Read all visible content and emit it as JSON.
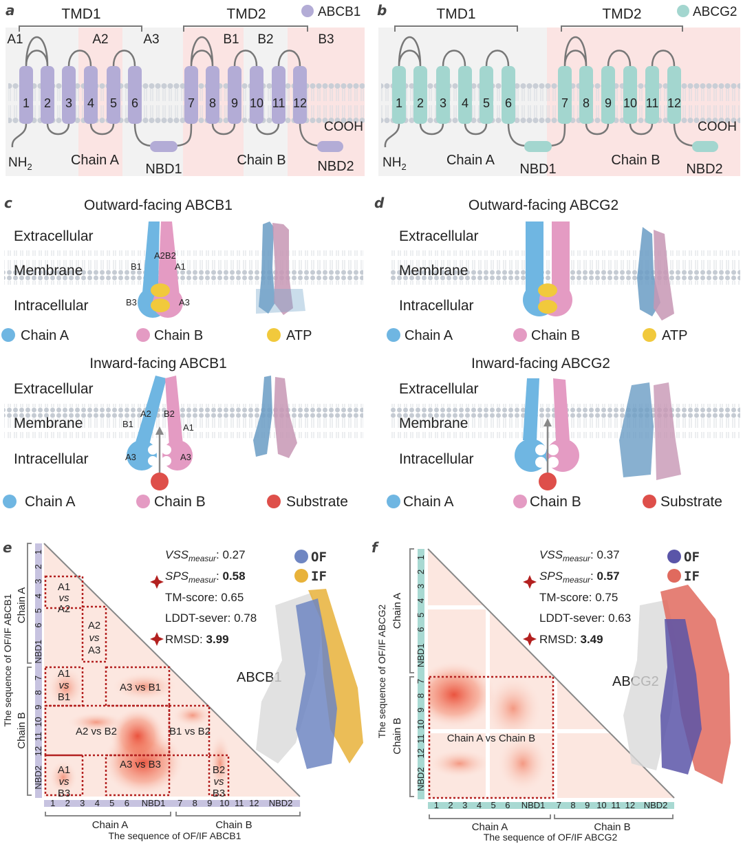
{
  "panels": {
    "a": {
      "letter": "a",
      "protein": "ABCB1",
      "legend_color": "#b3acd6",
      "tmd1": "TMD1",
      "tmd2": "TMD2",
      "region_labels": [
        "A1",
        "A2",
        "A3",
        "B1",
        "B2",
        "B3"
      ],
      "helices": [
        "1",
        "2",
        "3",
        "4",
        "5",
        "6",
        "7",
        "8",
        "9",
        "10",
        "11",
        "12"
      ],
      "nh2": "NH",
      "nh2_sub": "2",
      "cooh": "COOH",
      "chain_a": "Chain A",
      "chain_b": "Chain B",
      "nbd1": "NBD1",
      "nbd2": "NBD2"
    },
    "b": {
      "letter": "b",
      "protein": "ABCG2",
      "legend_color": "#a3d6cf",
      "tmd1": "TMD1",
      "tmd2": "TMD2",
      "helices": [
        "1",
        "2",
        "3",
        "4",
        "5",
        "6",
        "7",
        "8",
        "9",
        "10",
        "11",
        "12"
      ],
      "nh2": "NH",
      "nh2_sub": "2",
      "cooh": "COOH",
      "chain_a": "Chain A",
      "chain_b": "Chain B",
      "nbd1": "NBD1",
      "nbd2": "NBD2"
    },
    "c": {
      "letter": "c",
      "top_title": "Outward-facing ABCB1",
      "bottom_title": "Inward-facing ABCB1",
      "extracellular": "Extracellular",
      "membrane": "Membrane",
      "intracellular": "Intracellular",
      "out_labels": {
        "a2b2": "A2B2",
        "b1": "B1",
        "a1": "A1",
        "b3": "B3",
        "a3": "A3"
      },
      "in_labels": {
        "a2": "A2",
        "b2": "B2",
        "b1": "B1",
        "a1": "A1",
        "a3_left": "A3",
        "a3_right": "A3"
      },
      "legend_top": [
        "Chain A",
        "Chain B",
        "ATP"
      ],
      "legend_bottom": [
        "Chain A",
        "Chain B",
        "Substrate"
      ]
    },
    "d": {
      "letter": "d",
      "top_title": "Outward-facing ABCG2",
      "bottom_title": "Inward-facing ABCG2",
      "extracellular": "Extracellular",
      "membrane": "Membrane",
      "intracellular": "Intracellular",
      "legend_top": [
        "Chain A",
        "Chain B",
        "ATP"
      ],
      "legend_bottom": [
        "Chain A",
        "Chain B",
        "Substrate"
      ]
    },
    "e": {
      "letter": "e",
      "vss_label": "VSS",
      "vss_sub": "measur",
      "vss_value": ": 0.27",
      "sps_label": "SPS",
      "sps_sub": "measur",
      "sps_value": "0.58",
      "tm": "TM-score: 0.65",
      "lddt": "LDDT-sever: 0.78",
      "rmsd_label": "RMSD: ",
      "rmsd_value": "3.99",
      "of": "OF",
      "if": "IF",
      "of_color": "#6f86c2",
      "if_color": "#e8b23a",
      "protein": "ABCB1",
      "y_axis": "The sequence of OF/IF ABCB1",
      "x_axis": "The sequence of OF/IF ABCB1",
      "chain_a": "Chain A",
      "chain_b": "Chain B",
      "y_ticks": [
        "1",
        "2",
        "3",
        "4",
        "5",
        "6",
        "NBD1",
        "7",
        "8",
        "9",
        "10",
        "11",
        "12",
        "NBD2"
      ],
      "x_ticks": [
        "1",
        "2",
        "3",
        "4",
        "5",
        "6",
        "NBD1",
        "7",
        "8",
        "9",
        "10",
        "11",
        "12",
        "NBD2"
      ],
      "boxes": {
        "a1a2": [
          "A1",
          "vs",
          "A2"
        ],
        "a2a3": [
          "A2",
          "vs",
          "A3"
        ],
        "a1b1": [
          "A1",
          "vs",
          "B1"
        ],
        "a3b1": "A3 vs B1",
        "a2b2": "A2 vs B2",
        "b1b2": "B1 vs B2",
        "a1b3": [
          "A1",
          "vs",
          "B3"
        ],
        "a3b3": "A3 vs B3",
        "b2b3": [
          "B2",
          "vs",
          "B3"
        ]
      }
    },
    "f": {
      "letter": "f",
      "vss_label": "VSS",
      "vss_sub": "measur",
      "vss_value": ": 0.37",
      "sps_label": "SPS",
      "sps_sub": "measur",
      "sps_value": "0.57",
      "tm": "TM-score: 0.75",
      "lddt": "LDDT-sever: 0.63",
      "rmsd_label": "RMSD: ",
      "rmsd_value": "3.49",
      "of": "OF",
      "if": "IF",
      "of_color": "#5a55a8",
      "if_color": "#e06a5e",
      "protein": "ABCG2",
      "y_axis": "The sequence of OF/IF ABCG2",
      "x_axis": "The sequence of OF/IF ABCG2",
      "chain_a": "Chain A",
      "chain_b": "Chain B",
      "y_ticks": [
        "1",
        "2",
        "3",
        "4",
        "5",
        "6",
        "NBD1",
        "7",
        "8",
        "9",
        "10",
        "11",
        "12",
        "NBD2"
      ],
      "x_ticks": [
        "1",
        "2",
        "3",
        "4",
        "5",
        "6",
        "NBD1",
        "7",
        "8",
        "9",
        "10",
        "11",
        "12",
        "NBD2"
      ],
      "box_label": "Chain A vs Chain B"
    }
  },
  "colors": {
    "chain_a": "#6fb6e2",
    "chain_b": "#e49bc3",
    "atp": "#f1c93c",
    "substrate": "#de4f4a",
    "abcb1_helix": "#b3acd6",
    "abcg2_helix": "#a3d6cf",
    "highlight": "#fbe4e3"
  }
}
